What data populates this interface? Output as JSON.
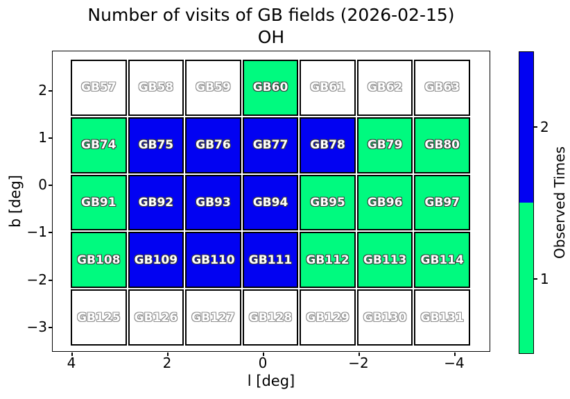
{
  "title": "Number of visits of GB fields (2026-02-15)",
  "subtitle": "OH",
  "axes": {
    "xlabel": "l [deg]",
    "ylabel": "b [deg]",
    "x_ticks": [
      "4",
      "2",
      "0",
      "−2",
      "−4"
    ],
    "y_ticks": [
      "2",
      "1",
      "0",
      "−1",
      "−2",
      "−3"
    ]
  },
  "colorbar": {
    "label": "Observed Times",
    "tick_labels": [
      "2",
      "1"
    ],
    "segment_colors": [
      "#0202f2",
      "#00fa7f"
    ]
  },
  "colors": {
    "visits_0": "#ffffff",
    "visits_1": "#00fa7f",
    "visits_2": "#0202f2",
    "cell_border": "#000000"
  },
  "chart_data": {
    "type": "heatmap",
    "title": "Number of visits of GB fields (2026-02-15)",
    "subtitle": "OH",
    "xlabel": "l [deg]",
    "ylabel": "b [deg]",
    "x_tick_labels": [
      "4",
      "2",
      "0",
      "−2",
      "−4"
    ],
    "y_tick_labels": [
      "2",
      "1",
      "0",
      "−1",
      "−2",
      "−3"
    ],
    "x_axis_reversed": true,
    "xlim": [
      4.4,
      -4.75
    ],
    "ylim": [
      -3.55,
      2.85
    ],
    "colorbar_label": "Observed Times",
    "colorbar_ticks": [
      1,
      2
    ],
    "legend": {
      "0": "white = not observed",
      "1": "green = observed 1 time",
      "2": "blue = observed 2 times"
    },
    "rows": [
      {
        "fields": [
          "GB57",
          "GB58",
          "GB59",
          "GB60",
          "GB61",
          "GB62",
          "GB63"
        ],
        "visits": [
          0,
          0,
          0,
          1,
          0,
          0,
          0
        ]
      },
      {
        "fields": [
          "GB74",
          "GB75",
          "GB76",
          "GB77",
          "GB78",
          "GB79",
          "GB80"
        ],
        "visits": [
          1,
          2,
          2,
          2,
          2,
          1,
          1
        ]
      },
      {
        "fields": [
          "GB91",
          "GB92",
          "GB93",
          "GB94",
          "GB95",
          "GB96",
          "GB97"
        ],
        "visits": [
          1,
          2,
          2,
          2,
          1,
          1,
          1
        ]
      },
      {
        "fields": [
          "GB108",
          "GB109",
          "GB110",
          "GB111",
          "GB112",
          "GB113",
          "GB114"
        ],
        "visits": [
          1,
          2,
          2,
          2,
          1,
          1,
          1
        ]
      },
      {
        "fields": [
          "GB125",
          "GB126",
          "GB127",
          "GB128",
          "GB129",
          "GB130",
          "GB131"
        ],
        "visits": [
          0,
          0,
          0,
          0,
          0,
          0,
          0
        ]
      }
    ]
  }
}
